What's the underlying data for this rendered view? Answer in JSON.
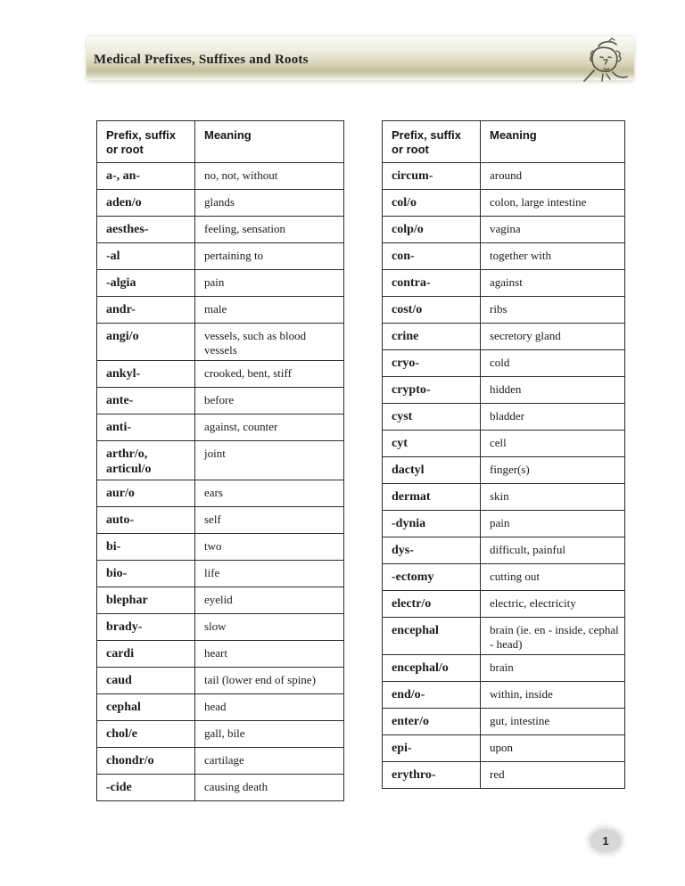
{
  "header": {
    "title": "Medical Prefixes, Suffixes and Roots",
    "mascot_icon": "sketched-person-face-icon"
  },
  "page": {
    "number": "1"
  },
  "colors": {
    "banner_olive": "#c3c09d",
    "banner_light": "#f4f3ea",
    "badge_gray": "#d7d7d7",
    "table_border": "#2b2b2b",
    "title_text": "#1e1e28"
  },
  "tables": {
    "col1_header": "Prefix, suffix or root",
    "col2_header": "Meaning",
    "left_rows": [
      {
        "term": "a-, an-",
        "meaning": "no, not, without"
      },
      {
        "term": "aden/o",
        "meaning": "glands"
      },
      {
        "term": "aesthes-",
        "meaning": "feeling, sensation"
      },
      {
        "term": "-al",
        "meaning": "pertaining to"
      },
      {
        "term": "-algia",
        "meaning": "pain"
      },
      {
        "term": "andr-",
        "meaning": "male"
      },
      {
        "term": "angi/o",
        "meaning": "vessels, such as blood vessels"
      },
      {
        "term": "ankyl-",
        "meaning": "crooked, bent, stiff"
      },
      {
        "term": "ante-",
        "meaning": "before"
      },
      {
        "term": "anti-",
        "meaning": "against, counter"
      },
      {
        "term": "arthr/o, articul/o",
        "meaning": "joint"
      },
      {
        "term": "aur/o",
        "meaning": "ears"
      },
      {
        "term": "auto-",
        "meaning": "self"
      },
      {
        "term": "bi-",
        "meaning": "two"
      },
      {
        "term": "bio-",
        "meaning": "life"
      },
      {
        "term": "blephar",
        "meaning": "eyelid"
      },
      {
        "term": "brady-",
        "meaning": "slow"
      },
      {
        "term": "cardi",
        "meaning": "heart"
      },
      {
        "term": "caud",
        "meaning": "tail (lower end of spine)"
      },
      {
        "term": "cephal",
        "meaning": "head"
      },
      {
        "term": "chol/e",
        "meaning": "gall, bile"
      },
      {
        "term": "chondr/o",
        "meaning": "cartilage"
      },
      {
        "term": "-cide",
        "meaning": "causing death"
      }
    ],
    "right_rows": [
      {
        "term": "circum-",
        "meaning": "around"
      },
      {
        "term": "col/o",
        "meaning": "colon, large intestine"
      },
      {
        "term": "colp/o",
        "meaning": "vagina"
      },
      {
        "term": "con-",
        "meaning": "together with"
      },
      {
        "term": "contra-",
        "meaning": "against"
      },
      {
        "term": "cost/o",
        "meaning": "ribs"
      },
      {
        "term": "crine",
        "meaning": "secretory gland"
      },
      {
        "term": "cryo-",
        "meaning": "cold"
      },
      {
        "term": "crypto-",
        "meaning": "hidden"
      },
      {
        "term": "cyst",
        "meaning": "bladder"
      },
      {
        "term": "cyt",
        "meaning": "cell"
      },
      {
        "term": "dactyl",
        "meaning": "finger(s)"
      },
      {
        "term": "dermat",
        "meaning": "skin"
      },
      {
        "term": "-dynia",
        "meaning": "pain"
      },
      {
        "term": "dys-",
        "meaning": "difficult, painful"
      },
      {
        "term": "-ectomy",
        "meaning": "cutting out"
      },
      {
        "term": "electr/o",
        "meaning": "electric, electricity"
      },
      {
        "term": "encephal",
        "meaning": "brain (ie. en - inside, cephal - head)"
      },
      {
        "term": "encephal/o",
        "meaning": "brain"
      },
      {
        "term": "end/o-",
        "meaning": "within, inside"
      },
      {
        "term": "enter/o",
        "meaning": "gut, intestine"
      },
      {
        "term": "epi-",
        "meaning": "upon"
      },
      {
        "term": "erythro-",
        "meaning": "red"
      }
    ]
  }
}
